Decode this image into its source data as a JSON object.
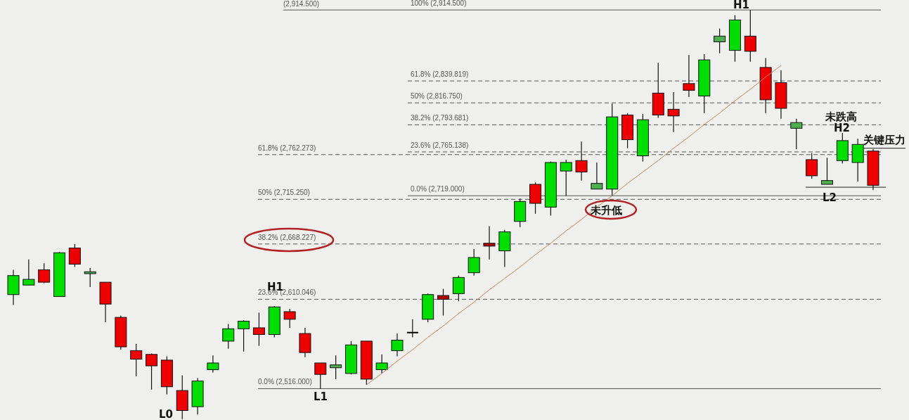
{
  "chart_data": {
    "type": "candlestick",
    "categories": [
      null,
      null,
      null,
      null,
      null,
      null,
      null,
      null,
      null,
      null,
      null,
      null,
      null,
      null,
      null,
      null,
      null,
      null,
      null,
      null,
      null,
      null,
      null,
      null,
      null,
      null,
      null,
      null,
      null,
      null,
      null,
      null,
      null,
      null,
      null,
      null,
      null,
      null,
      null,
      null,
      null,
      null,
      null,
      null,
      null,
      null,
      null,
      null,
      null,
      null,
      null,
      null,
      null,
      null,
      null,
      null,
      null
    ],
    "ohlc": [
      [
        2615,
        2641,
        2604,
        2635
      ],
      [
        2625,
        2652,
        2625,
        2631
      ],
      [
        2641,
        2648,
        2627,
        2628
      ],
      [
        2613,
        2660,
        2613,
        2659
      ],
      [
        2664,
        2668,
        2644,
        2647
      ],
      [
        2637,
        2643,
        2623,
        2639
      ],
      [
        2628,
        2628,
        2586,
        2605
      ],
      [
        2591,
        2593,
        2557,
        2560
      ],
      [
        2556,
        2563,
        2529,
        2547
      ],
      [
        2552,
        2553,
        2515,
        2540
      ],
      [
        2546,
        2550,
        2510,
        2518
      ],
      [
        2514,
        2530,
        2484,
        2493
      ],
      [
        2497,
        2527,
        2489,
        2524
      ],
      [
        2536,
        2551,
        2533,
        2543
      ],
      [
        2566,
        2584,
        2558,
        2579
      ],
      [
        2579,
        2588,
        2555,
        2587
      ],
      [
        2580,
        2596,
        2561,
        2573
      ],
      [
        2573,
        2603,
        2570,
        2602
      ],
      [
        2597,
        2600,
        2580,
        2589
      ],
      [
        2574,
        2580,
        2549,
        2554
      ],
      [
        2543,
        2543,
        2516,
        2531
      ],
      [
        2538,
        2551,
        2526,
        2541
      ],
      [
        2532,
        2566,
        2531,
        2562
      ],
      [
        2566,
        2566,
        2520,
        2526
      ],
      [
        2536,
        2552,
        2532,
        2543
      ],
      [
        2556,
        2574,
        2550,
        2567
      ],
      [
        2575,
        2589,
        2570,
        2575
      ],
      [
        2589,
        2616,
        2586,
        2615
      ],
      [
        2614,
        2621,
        2593,
        2610
      ],
      [
        2616,
        2635,
        2608,
        2633
      ],
      [
        2638,
        2663,
        2635,
        2654
      ],
      [
        2669,
        2687,
        2652,
        2666
      ],
      [
        2661,
        2683,
        2644,
        2681
      ],
      [
        2692,
        2716,
        2686,
        2713
      ],
      [
        2731,
        2733,
        2700,
        2711
      ],
      [
        2707,
        2755,
        2698,
        2754
      ],
      [
        2745,
        2757,
        2719,
        2754
      ],
      [
        2756,
        2776,
        2735,
        2744
      ],
      [
        2726,
        2754,
        2726,
        2732
      ],
      [
        2726,
        2816,
        2719,
        2802
      ],
      [
        2804,
        2806,
        2769,
        2778
      ],
      [
        2761,
        2805,
        2755,
        2799
      ],
      [
        2827,
        2859,
        2801,
        2804
      ],
      [
        2810,
        2828,
        2786,
        2803
      ],
      [
        2837,
        2867,
        2823,
        2830
      ],
      [
        2824,
        2868,
        2806,
        2862
      ],
      [
        2881,
        2895,
        2869,
        2887
      ],
      [
        2872,
        2909,
        2860,
        2904
      ],
      [
        2887,
        2914.5,
        2860,
        2871
      ],
      [
        2854,
        2864,
        2806,
        2820
      ],
      [
        2838,
        2851,
        2800,
        2811
      ],
      [
        2790,
        2800,
        2768,
        2796
      ],
      [
        2757,
        2764,
        2737,
        2740
      ],
      [
        2731,
        2759,
        2731,
        2735
      ],
      [
        2756,
        2785,
        2753,
        2777
      ],
      [
        2754,
        2779,
        2734,
        2773
      ],
      [
        2766,
        2768,
        2725,
        2730
      ]
    ],
    "colors": [
      "#00dd00",
      "#00dd00",
      "#ee0000",
      "#00dd00",
      "#ee0000",
      "#4caf50",
      "#ee0000",
      "#ee0000",
      "#ee0000",
      "#ee0000",
      "#ee0000",
      "#ee0000",
      "#00dd00",
      "#00dd00",
      "#00dd00",
      "#00dd00",
      "#ee0000",
      "#00dd00",
      "#ee0000",
      "#ee0000",
      "#ee0000",
      "#4caf50",
      "#00dd00",
      "#ee0000",
      "#00dd00",
      "#00dd00",
      "#000000",
      "#00dd00",
      "#b00000",
      "#00dd00",
      "#00dd00",
      "#b00000",
      "#00dd00",
      "#00dd00",
      "#ee0000",
      "#00dd00",
      "#00dd00",
      "#ee0000",
      "#4caf50",
      "#00dd00",
      "#ee0000",
      "#00dd00",
      "#ee0000",
      "#ee0000",
      "#ee0000",
      "#00dd00",
      "#4caf50",
      "#00dd00",
      "#ee0000",
      "#ee0000",
      "#ee0000",
      "#4caf50",
      "#ee0000",
      "#4caf50",
      "#00dd00",
      "#00dd00",
      "#ee0000"
    ],
    "series": [
      {
        "type": "line",
        "color": "#c8864f",
        "values": [
          null,
          null,
          null,
          null,
          null,
          null,
          null,
          null,
          null,
          null,
          null,
          null,
          null,
          null,
          null,
          null,
          null,
          null,
          null,
          null,
          null,
          null,
          null,
          2520,
          2532,
          2545,
          2557,
          2570,
          2582,
          2595,
          2607,
          2620,
          2632,
          2644,
          2657,
          2669,
          2682,
          2694,
          2707,
          2719,
          2732,
          2744,
          2756,
          2769,
          2781,
          2794,
          2806,
          2819,
          2831,
          2844,
          2856,
          null,
          null,
          null,
          null,
          null,
          null
        ]
      }
    ],
    "ylim": [
      2483,
      2925
    ],
    "ref_lines": [
      {
        "axis": "y",
        "value": 2516,
        "label": "0.0%  (2,516.000)",
        "line_style": "solid",
        "color": "#555555"
      },
      {
        "axis": "y",
        "value": 2610.046,
        "label": "23.6%  (2,610.046)",
        "line_style": "dashed",
        "color": "#555555"
      },
      {
        "axis": "y",
        "value": 2668.227,
        "label": "38.2%  (2,668.227)",
        "line_style": "dashed",
        "color": "#555555"
      },
      {
        "axis": "y",
        "value": 2715.25,
        "label": "50%  (2,715.250)",
        "line_style": "dashed",
        "color": "#555555"
      },
      {
        "axis": "y",
        "value": 2762.273,
        "label": "61.8%  (2,762.273)",
        "line_style": "dashed",
        "color": "#555555"
      },
      {
        "axis": "y",
        "value": 2719,
        "label": "0.0%  (2,719.000)",
        "line_style": "solid",
        "color": "#555555"
      },
      {
        "axis": "y",
        "value": 2765.138,
        "label": "23.6%  (2,765.138)",
        "line_style": "dashed",
        "color": "#555555"
      },
      {
        "axis": "y",
        "value": 2793.681,
        "label": "38.2%  (2,793.681)",
        "line_style": "dashed",
        "color": "#555555"
      },
      {
        "axis": "y",
        "value": 2816.75,
        "label": "50%  (2,816.750)",
        "line_style": "dashed",
        "color": "#555555"
      },
      {
        "axis": "y",
        "value": 2839.819,
        "label": "61.8%  (2,839.819)",
        "line_style": "dashed",
        "color": "#555555"
      },
      {
        "axis": "y",
        "value": 2914.5,
        "label": "100%  (2,914.500)",
        "line_style": "solid",
        "color": "#555555"
      },
      {
        "axis": "y",
        "value": 2728,
        "label": "L2",
        "line_style": "solid",
        "color": "#222222"
      },
      {
        "axis": "y",
        "value": 2769,
        "label": "关键压力",
        "line_style": "solid",
        "color": "#222222"
      }
    ],
    "annotations": [
      "L0",
      "H1",
      "L1",
      "未升低",
      "H1",
      "未跌高",
      "H2",
      "(2,914.500)"
    ]
  }
}
